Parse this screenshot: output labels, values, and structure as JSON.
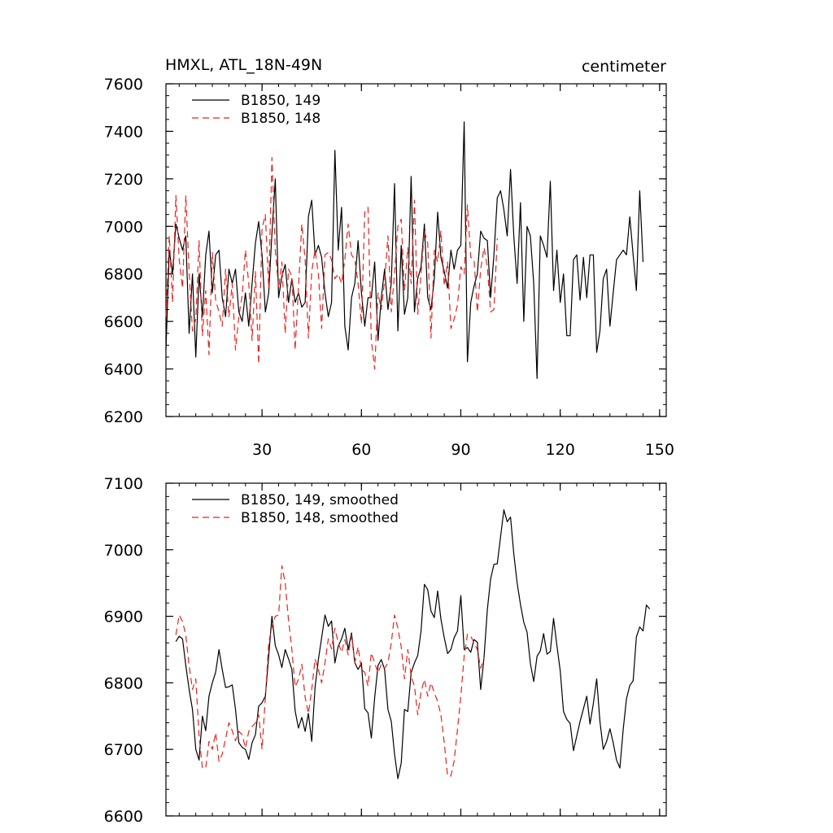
{
  "header": {
    "left_title": "HMXL, ATL_18N-49N",
    "right_title": "centimeter"
  },
  "chart_data": [
    {
      "type": "line",
      "title": "HMXL, ATL_18N-49N",
      "units": "centimeter",
      "xlim": [
        1,
        152
      ],
      "ylim": [
        6200,
        7600
      ],
      "xticks": [
        30,
        60,
        90,
        120,
        150
      ],
      "yticks": [
        6200,
        6400,
        6600,
        6800,
        7000,
        7200,
        7400,
        7600
      ],
      "legend_position": "top-left",
      "grid": false,
      "series": [
        {
          "name": "B1850, 149",
          "color": "#000000",
          "dash": "solid",
          "x_start": 1,
          "values": [
            6480,
            6900,
            6800,
            7010,
            6950,
            6900,
            6960,
            6550,
            6800,
            6450,
            6800,
            6620,
            6880,
            6980,
            6720,
            6880,
            6900,
            6700,
            6620,
            6820,
            6760,
            6820,
            6640,
            6600,
            6720,
            6580,
            6760,
            6930,
            7020,
            6880,
            6640,
            6720,
            6970,
            7200,
            6700,
            6790,
            6840,
            6680,
            6780,
            6680,
            6720,
            6660,
            6680,
            7040,
            7110,
            6880,
            6920,
            6870,
            6720,
            6620,
            6680,
            7320,
            6900,
            7080,
            6580,
            6480,
            6700,
            6760,
            6940,
            6720,
            6580,
            6700,
            6700,
            6850,
            6520,
            6700,
            6820,
            6650,
            6760,
            7180,
            6560,
            6920,
            6630,
            6700,
            7210,
            6640,
            6780,
            6830,
            7010,
            6700,
            6650,
            6780,
            7060,
            6870,
            6810,
            6740,
            6900,
            6820,
            6900,
            6920,
            7440,
            6430,
            6680,
            6750,
            6800,
            6980,
            6950,
            6940,
            6700,
            6880,
            7120,
            7150,
            7070,
            6960,
            7240,
            6960,
            6760,
            7100,
            6600,
            7000,
            6960,
            6760,
            6360,
            6960,
            6920,
            6870,
            7190,
            6730,
            6900,
            6680,
            6800,
            6540,
            6540,
            6860,
            6880,
            6690,
            6870,
            6700,
            6880,
            6880,
            6470,
            6560,
            6780,
            6820,
            6580,
            6720,
            6860,
            6880,
            6900,
            6880,
            7040,
            6880,
            6730,
            7150,
            6850
          ]
        },
        {
          "name": "B1850, 148",
          "color": "#e8231e",
          "dash": "dashed",
          "x_start": 1,
          "values": [
            6620,
            6960,
            6680,
            7130,
            6860,
            6740,
            7130,
            6810,
            6560,
            6610,
            6940,
            6540,
            6730,
            6460,
            6890,
            6690,
            6640,
            6580,
            6820,
            6620,
            6760,
            6480,
            6620,
            6710,
            6900,
            6760,
            6520,
            6810,
            6420,
            6990,
            7050,
            6740,
            7290,
            6900,
            6740,
            6850,
            6550,
            6820,
            6790,
            6480,
            6740,
            7010,
            6860,
            6530,
            6810,
            6900,
            6800,
            6570,
            6880,
            6890,
            6860,
            6780,
            6800,
            6760,
            6860,
            7010,
            6880,
            6860,
            6760,
            6590,
            7060,
            7080,
            6520,
            6400,
            6720,
            6650,
            6770,
            6960,
            6640,
            6800,
            7000,
            7030,
            6730,
            6910,
            6760,
            7110,
            6630,
            6800,
            6980,
            6930,
            6530,
            6900,
            6850,
            6980,
            6750,
            6850,
            6570,
            6610,
            6670,
            6830,
            6800,
            7090,
            6870,
            6860,
            6640,
            6820,
            6910,
            6830,
            6640,
            6650,
            6950
          ]
        }
      ]
    },
    {
      "type": "line",
      "xlim": [
        1,
        152
      ],
      "ylim": [
        6600,
        7100
      ],
      "xticks": [
        30,
        60,
        90,
        120,
        150
      ],
      "yticks": [
        6600,
        6700,
        6800,
        6900,
        7000,
        7100
      ],
      "legend_position": "top-left",
      "grid": false,
      "series": [
        {
          "name": "B1850, 149, smoothed",
          "color": "#000000",
          "dash": "solid",
          "x_start": 4,
          "values": [
            6862,
            6870,
            6866,
            6826,
            6790,
            6760,
            6700,
            6684,
            6750,
            6728,
            6780,
            6800,
            6816,
            6850,
            6820,
            6793,
            6794,
            6797,
            6760,
            6710,
            6703,
            6700,
            6685,
            6710,
            6722,
            6765,
            6770,
            6780,
            6840,
            6900,
            6856,
            6842,
            6823,
            6850,
            6836,
            6820,
            6758,
            6732,
            6748,
            6727,
            6754,
            6712,
            6793,
            6835,
            6868,
            6902,
            6885,
            6893,
            6830,
            6855,
            6866,
            6882,
            6850,
            6875,
            6830,
            6820,
            6830,
            6761,
            6755,
            6717,
            6778,
            6826,
            6835,
            6820,
            6760,
            6742,
            6693,
            6656,
            6679,
            6760,
            6757,
            6815,
            6830,
            6841,
            6878,
            6948,
            6940,
            6908,
            6898,
            6938,
            6896,
            6868,
            6844,
            6850,
            6868,
            6878,
            6931,
            6850,
            6853,
            6846,
            6865,
            6861,
            6790,
            6838,
            6910,
            6956,
            6978,
            6979,
            7020,
            7060,
            7042,
            7049,
            6994,
            6950,
            6918,
            6891,
            6876,
            6829,
            6802,
            6840,
            6848,
            6874,
            6843,
            6847,
            6897,
            6856,
            6818,
            6757,
            6745,
            6739,
            6698,
            6720,
            6742,
            6761,
            6780,
            6738,
            6769,
            6806,
            6742,
            6700,
            6712,
            6731,
            6710,
            6684,
            6672,
            6730,
            6776,
            6796,
            6803,
            6869,
            6884,
            6878,
            6917,
            6911
          ]
        },
        {
          "name": "B1850, 148, smoothed",
          "color": "#e8231e",
          "dash": "dashed",
          "x_start": 4,
          "values": [
            6872,
            6902,
            6892,
            6872,
            6825,
            6790,
            6806,
            6720,
            6672,
            6672,
            6712,
            6700,
            6725,
            6682,
            6693,
            6716,
            6740,
            6728,
            6713,
            6727,
            6722,
            6702,
            6727,
            6734,
            6740,
            6752,
            6700,
            6778,
            6860,
            6885,
            6900,
            6902,
            6976,
            6950,
            6894,
            6850,
            6794,
            6805,
            6828,
            6778,
            6754,
            6790,
            6836,
            6820,
            6800,
            6830,
            6866,
            6851,
            6882,
            6860,
            6846,
            6865,
            6842,
            6872,
            6830,
            6854,
            6820,
            6816,
            6795,
            6845,
            6830,
            6815,
            6828,
            6822,
            6830,
            6860,
            6902,
            6882,
            6854,
            6806,
            6850,
            6810,
            6795,
            6752,
            6786,
            6805,
            6780,
            6800,
            6785,
            6772,
            6752,
            6710,
            6660,
            6660,
            6683,
            6730,
            6780,
            6840,
            6873,
            6870,
            6860,
            6850,
            6822,
            6838
          ]
        }
      ]
    }
  ]
}
